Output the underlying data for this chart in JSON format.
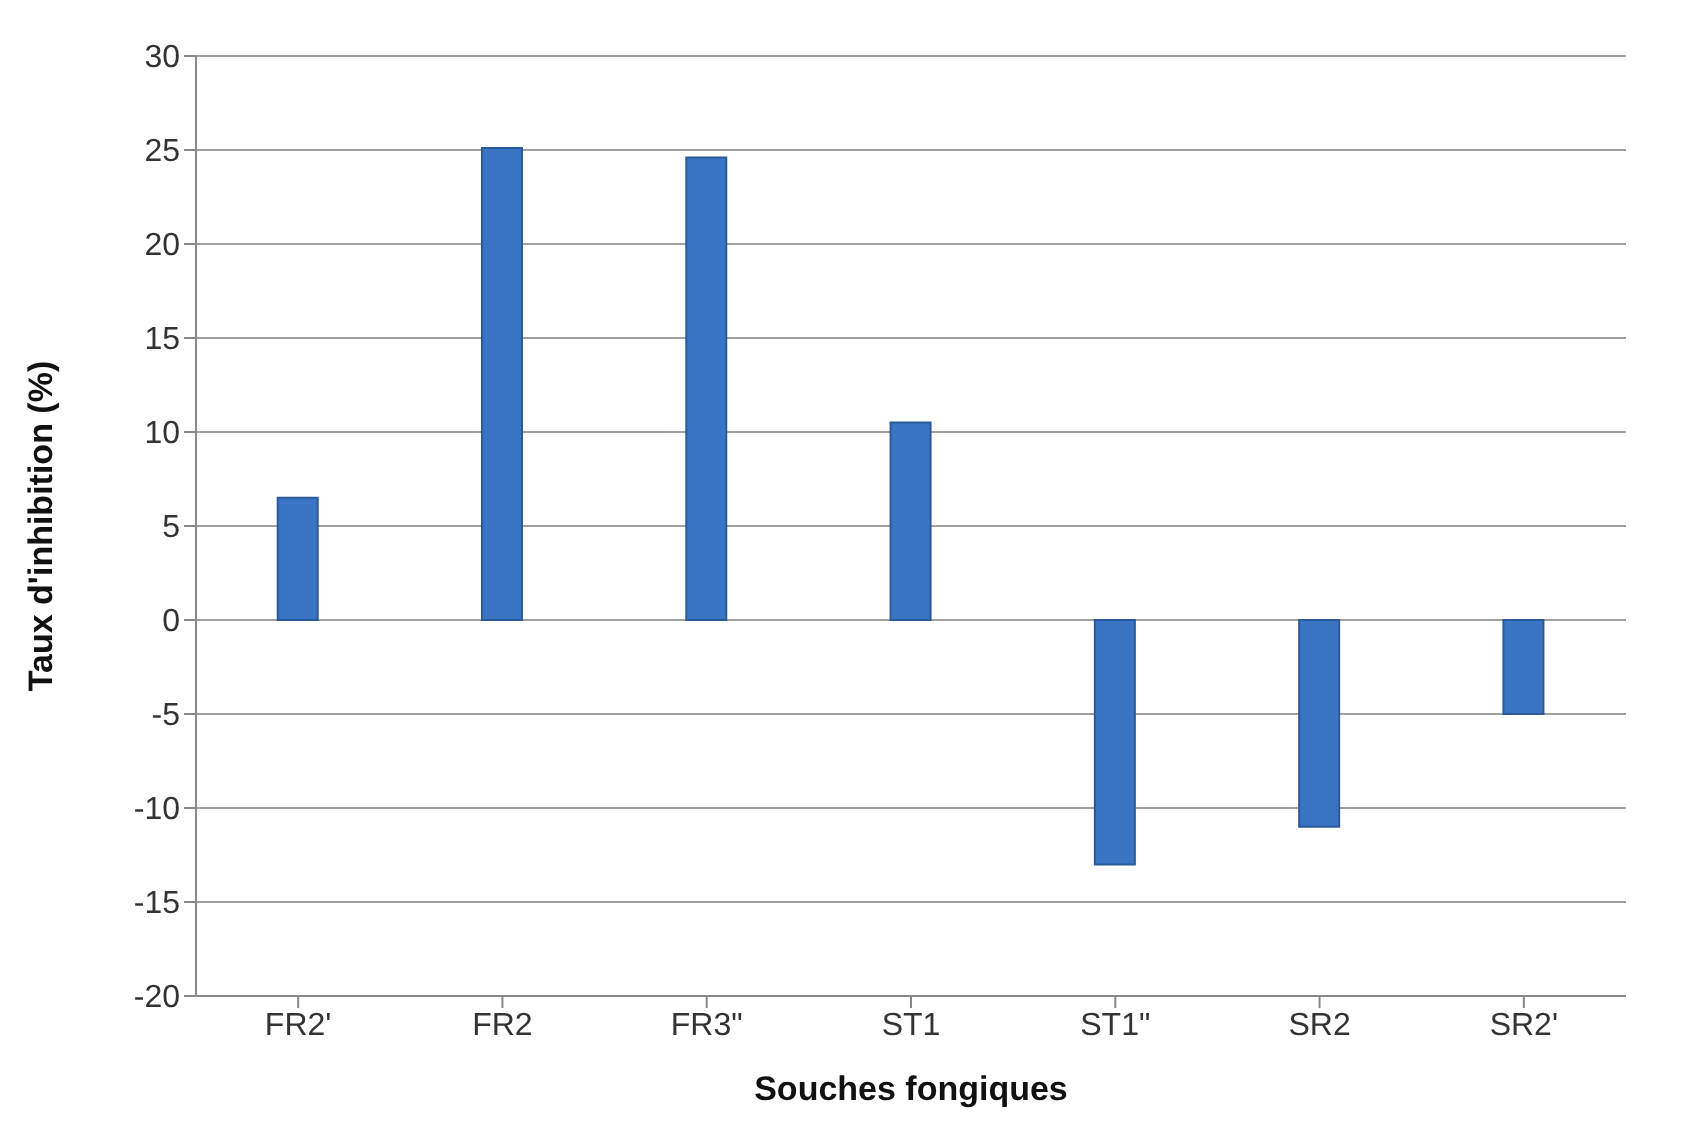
{
  "chart_data": {
    "type": "bar",
    "xlabel": "Souches fongiques",
    "ylabel": "Taux d'inhibition  (%)",
    "categories": [
      "FR2'",
      "FR2",
      "FR3\"",
      "ST1",
      "ST1\"",
      "SR2",
      "SR2'"
    ],
    "values": [
      6.5,
      25.1,
      24.6,
      10.5,
      -13,
      -11,
      -5
    ],
    "color": "#3a75c4",
    "ylim": [
      -20,
      30
    ],
    "yticks": [
      -20,
      -15,
      -10,
      -5,
      0,
      5,
      10,
      15,
      20,
      25,
      30
    ],
    "grid": "y"
  }
}
